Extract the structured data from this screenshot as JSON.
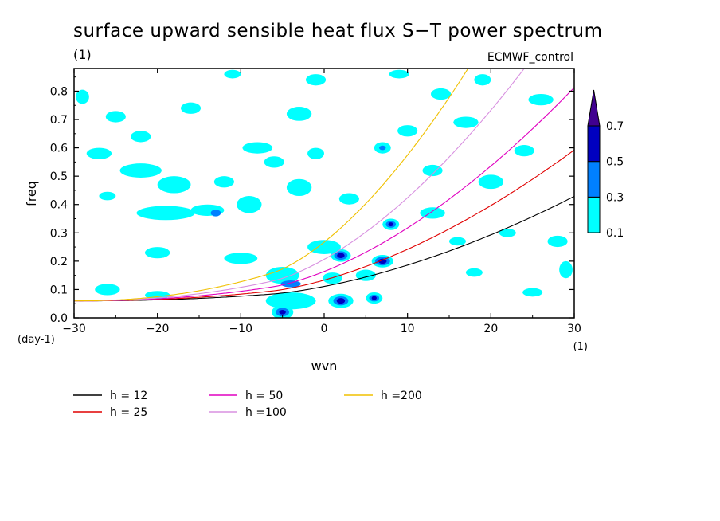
{
  "chart_data": {
    "type": "heatmap",
    "title": "surface upward sensible heat flux S−T power spectrum",
    "title_units": "(1)",
    "source_label": "ECMWF_control",
    "xlabel": "wvn",
    "ylabel": "freq",
    "x_units": "(1)",
    "y_units": "(day-1)",
    "xlim": [
      -30,
      30
    ],
    "ylim": [
      0,
      0.88
    ],
    "xticks": [
      -30,
      -20,
      -10,
      0,
      10,
      20,
      30
    ],
    "yticks": [
      0.0,
      0.1,
      0.2,
      0.3,
      0.4,
      0.5,
      0.6,
      0.7,
      0.8
    ],
    "colorbar": {
      "levels": [
        0.1,
        0.3,
        0.5,
        0.7
      ],
      "labels": [
        "0.1",
        "0.3",
        "0.5",
        "0.7"
      ],
      "colors": [
        "#00ffff",
        "#0080ff",
        "#0000c0",
        "#400090"
      ]
    },
    "dispersion_curves": [
      {
        "name": "h = 12",
        "h": 12,
        "color": "#000000"
      },
      {
        "name": "h = 25",
        "h": 25,
        "color": "#e00000"
      },
      {
        "name": "h = 50",
        "h": 50,
        "color": "#e000c0"
      },
      {
        "name": "h =100",
        "h": 100,
        "color": "#d890e0"
      },
      {
        "name": "h =200",
        "h": 200,
        "color": "#f0c000"
      }
    ],
    "contour_patches": [
      {
        "x": -29,
        "y": 0.78,
        "rx": 0.8,
        "ry": 0.025,
        "level": 0.1
      },
      {
        "x": -25,
        "y": 0.71,
        "rx": 1.2,
        "ry": 0.02,
        "level": 0.1
      },
      {
        "x": -27,
        "y": 0.58,
        "rx": 1.5,
        "ry": 0.02,
        "level": 0.1
      },
      {
        "x": -22,
        "y": 0.52,
        "rx": 2.5,
        "ry": 0.025,
        "level": 0.1
      },
      {
        "x": -18,
        "y": 0.47,
        "rx": 2.0,
        "ry": 0.03,
        "level": 0.1
      },
      {
        "x": -19,
        "y": 0.37,
        "rx": 3.5,
        "ry": 0.025,
        "level": 0.1
      },
      {
        "x": -14,
        "y": 0.38,
        "rx": 2.0,
        "ry": 0.02,
        "level": 0.1
      },
      {
        "x": -13,
        "y": 0.37,
        "rx": 0.6,
        "ry": 0.012,
        "level": 0.3
      },
      {
        "x": -9,
        "y": 0.4,
        "rx": 1.5,
        "ry": 0.03,
        "level": 0.1
      },
      {
        "x": -10,
        "y": 0.21,
        "rx": 2.0,
        "ry": 0.02,
        "level": 0.1
      },
      {
        "x": -20,
        "y": 0.23,
        "rx": 1.5,
        "ry": 0.02,
        "level": 0.1
      },
      {
        "x": -26,
        "y": 0.1,
        "rx": 1.5,
        "ry": 0.02,
        "level": 0.1
      },
      {
        "x": -20,
        "y": 0.08,
        "rx": 1.5,
        "ry": 0.015,
        "level": 0.1
      },
      {
        "x": -8,
        "y": 0.6,
        "rx": 1.8,
        "ry": 0.02,
        "level": 0.1
      },
      {
        "x": -12,
        "y": 0.48,
        "rx": 1.2,
        "ry": 0.02,
        "level": 0.1
      },
      {
        "x": -16,
        "y": 0.74,
        "rx": 1.2,
        "ry": 0.02,
        "level": 0.1
      },
      {
        "x": -3,
        "y": 0.72,
        "rx": 1.5,
        "ry": 0.025,
        "level": 0.1
      },
      {
        "x": -6,
        "y": 0.55,
        "rx": 1.2,
        "ry": 0.02,
        "level": 0.1
      },
      {
        "x": -3,
        "y": 0.46,
        "rx": 1.5,
        "ry": 0.03,
        "level": 0.1
      },
      {
        "x": -5,
        "y": 0.15,
        "rx": 2.0,
        "ry": 0.03,
        "level": 0.1
      },
      {
        "x": -4,
        "y": 0.12,
        "rx": 1.2,
        "ry": 0.012,
        "level": 0.3
      },
      {
        "x": -4,
        "y": 0.06,
        "rx": 3.0,
        "ry": 0.03,
        "level": 0.1
      },
      {
        "x": -5,
        "y": 0.02,
        "rx": 1.3,
        "ry": 0.025,
        "level": 0.1
      },
      {
        "x": -5,
        "y": 0.02,
        "rx": 0.8,
        "ry": 0.015,
        "level": 0.3
      },
      {
        "x": -5,
        "y": 0.02,
        "rx": 0.4,
        "ry": 0.008,
        "level": 0.5
      },
      {
        "x": 0,
        "y": 0.25,
        "rx": 2.0,
        "ry": 0.025,
        "level": 0.1
      },
      {
        "x": 2,
        "y": 0.22,
        "rx": 1.2,
        "ry": 0.022,
        "level": 0.1
      },
      {
        "x": 2,
        "y": 0.22,
        "rx": 0.8,
        "ry": 0.015,
        "level": 0.3
      },
      {
        "x": 2,
        "y": 0.22,
        "rx": 0.45,
        "ry": 0.009,
        "level": 0.5
      },
      {
        "x": 2,
        "y": 0.06,
        "rx": 1.5,
        "ry": 0.025,
        "level": 0.1
      },
      {
        "x": 2,
        "y": 0.06,
        "rx": 0.9,
        "ry": 0.016,
        "level": 0.3
      },
      {
        "x": 2,
        "y": 0.06,
        "rx": 0.5,
        "ry": 0.01,
        "level": 0.5
      },
      {
        "x": 1,
        "y": 0.14,
        "rx": 1.2,
        "ry": 0.02,
        "level": 0.1
      },
      {
        "x": 6,
        "y": 0.07,
        "rx": 1.0,
        "ry": 0.02,
        "level": 0.1
      },
      {
        "x": 6,
        "y": 0.07,
        "rx": 0.6,
        "ry": 0.012,
        "level": 0.3
      },
      {
        "x": 6,
        "y": 0.07,
        "rx": 0.3,
        "ry": 0.007,
        "level": 0.5
      },
      {
        "x": 7,
        "y": 0.2,
        "rx": 1.3,
        "ry": 0.022,
        "level": 0.1
      },
      {
        "x": 7,
        "y": 0.2,
        "rx": 0.9,
        "ry": 0.015,
        "level": 0.3
      },
      {
        "x": 7,
        "y": 0.2,
        "rx": 0.5,
        "ry": 0.009,
        "level": 0.5
      },
      {
        "x": 8,
        "y": 0.33,
        "rx": 1.0,
        "ry": 0.02,
        "level": 0.1
      },
      {
        "x": 8,
        "y": 0.33,
        "rx": 0.6,
        "ry": 0.012,
        "level": 0.3
      },
      {
        "x": 8,
        "y": 0.33,
        "rx": 0.3,
        "ry": 0.007,
        "level": 0.5
      },
      {
        "x": 5,
        "y": 0.15,
        "rx": 1.2,
        "ry": 0.02,
        "level": 0.1
      },
      {
        "x": 7,
        "y": 0.6,
        "rx": 1.0,
        "ry": 0.02,
        "level": 0.1
      },
      {
        "x": 7,
        "y": 0.6,
        "rx": 0.4,
        "ry": 0.008,
        "level": 0.3
      },
      {
        "x": 10,
        "y": 0.66,
        "rx": 1.2,
        "ry": 0.02,
        "level": 0.1
      },
      {
        "x": 13,
        "y": 0.52,
        "rx": 1.2,
        "ry": 0.02,
        "level": 0.1
      },
      {
        "x": 17,
        "y": 0.69,
        "rx": 1.5,
        "ry": 0.02,
        "level": 0.1
      },
      {
        "x": 14,
        "y": 0.79,
        "rx": 1.2,
        "ry": 0.02,
        "level": 0.1
      },
      {
        "x": 20,
        "y": 0.48,
        "rx": 1.5,
        "ry": 0.025,
        "level": 0.1
      },
      {
        "x": 24,
        "y": 0.59,
        "rx": 1.2,
        "ry": 0.02,
        "level": 0.1
      },
      {
        "x": 26,
        "y": 0.77,
        "rx": 1.5,
        "ry": 0.02,
        "level": 0.1
      },
      {
        "x": 28,
        "y": 0.27,
        "rx": 1.2,
        "ry": 0.02,
        "level": 0.1
      },
      {
        "x": 22,
        "y": 0.3,
        "rx": 1.0,
        "ry": 0.015,
        "level": 0.1
      },
      {
        "x": 29,
        "y": 0.17,
        "rx": 0.8,
        "ry": 0.03,
        "level": 0.1
      },
      {
        "x": 18,
        "y": 0.16,
        "rx": 1.0,
        "ry": 0.015,
        "level": 0.1
      },
      {
        "x": 13,
        "y": 0.37,
        "rx": 1.5,
        "ry": 0.02,
        "level": 0.1
      },
      {
        "x": -1,
        "y": 0.84,
        "rx": 1.2,
        "ry": 0.02,
        "level": 0.1
      },
      {
        "x": -11,
        "y": 0.86,
        "rx": 1.0,
        "ry": 0.015,
        "level": 0.1
      },
      {
        "x": 9,
        "y": 0.86,
        "rx": 1.2,
        "ry": 0.015,
        "level": 0.1
      },
      {
        "x": 19,
        "y": 0.84,
        "rx": 1.0,
        "ry": 0.02,
        "level": 0.1
      },
      {
        "x": -22,
        "y": 0.64,
        "rx": 1.2,
        "ry": 0.02,
        "level": 0.1
      },
      {
        "x": -1,
        "y": 0.58,
        "rx": 1.0,
        "ry": 0.02,
        "level": 0.1
      },
      {
        "x": 3,
        "y": 0.42,
        "rx": 1.2,
        "ry": 0.02,
        "level": 0.1
      },
      {
        "x": -26,
        "y": 0.43,
        "rx": 1.0,
        "ry": 0.015,
        "level": 0.1
      },
      {
        "x": 16,
        "y": 0.27,
        "rx": 1.0,
        "ry": 0.015,
        "level": 0.1
      },
      {
        "x": 25,
        "y": 0.09,
        "rx": 1.2,
        "ry": 0.015,
        "level": 0.1
      }
    ]
  }
}
